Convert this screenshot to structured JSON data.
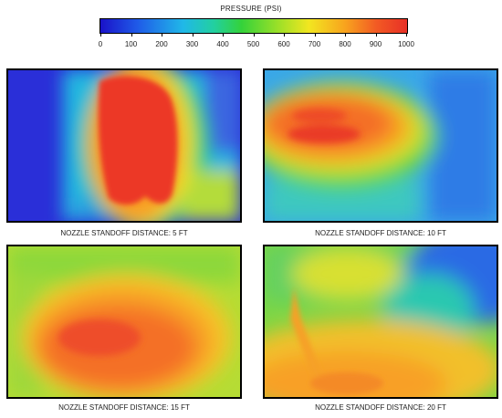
{
  "colorbar": {
    "title": "PRESSURE (PSI)",
    "ticks": [
      "0",
      "100",
      "200",
      "300",
      "400",
      "500",
      "600",
      "700",
      "800",
      "900",
      "1000"
    ],
    "min": 0,
    "max": 1000
  },
  "panels": [
    {
      "caption": "NOZZLE STANDOFF DISTANCE:  5 FT"
    },
    {
      "caption": "NOZZLE STANDOFF DISTANCE:  10 FT"
    },
    {
      "caption": "NOZZLE STANDOFF DISTANCE:  15 FT"
    },
    {
      "caption": "NOZZLE STANDOFF DISTANCE:  20 FT"
    }
  ],
  "colors": {
    "p0": "#1a12c8",
    "p200": "#20b8e8",
    "p400": "#34d23a",
    "p600": "#f2e620",
    "p800": "#f25a24",
    "p1000": "#e83026"
  }
}
